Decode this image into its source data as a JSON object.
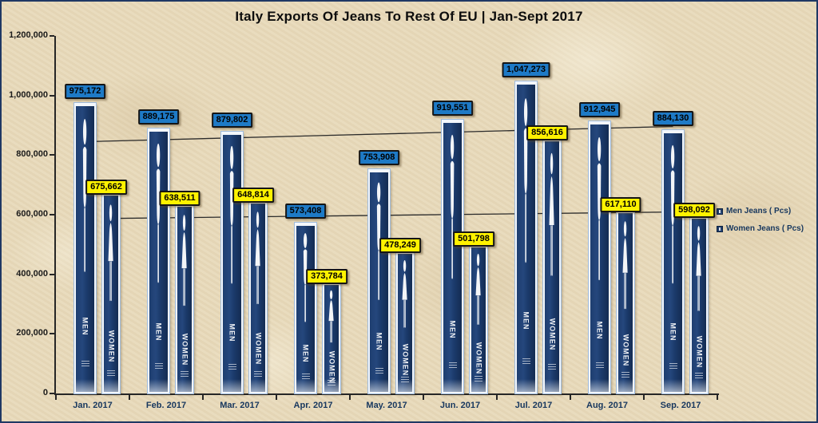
{
  "title": "Italy Exports Of Jeans To Rest Of EU | Jan-Sept 2017",
  "colors": {
    "background": "#E8DABB",
    "frame_border": "#1F3864",
    "bar_fill": "#1B3A6B",
    "bar_border": "#F3F7FC",
    "men_label_bg": "#1E7AC6",
    "women_label_bg": "#FFF200",
    "axis": "#262626",
    "trendline": "#2b2b2b",
    "x_label_color": "#17375E"
  },
  "y_axis": {
    "min": 0,
    "max": 1200000,
    "step": 200000,
    "tick_labels": [
      "0",
      "200,000",
      "400,000",
      "600,000",
      "800,000",
      "1,000,000",
      "1,200,000"
    ]
  },
  "legend": {
    "position": "right",
    "items": [
      {
        "label": "Men Jeans ( Pcs)",
        "swatch": "men-swatch"
      },
      {
        "label": "Women Jeans ( Pcs)",
        "swatch": "women-swatch"
      }
    ]
  },
  "chart_data": {
    "type": "bar",
    "title": "Italy Exports Of Jeans To Rest Of EU | Jan-Sept 2017",
    "categories": [
      "Jan. 2017",
      "Feb. 2017",
      "Mar. 2017",
      "Apr. 2017",
      "May. 2017",
      "Jun. 2017",
      "Jul. 2017",
      "Aug. 2017",
      "Sep. 2017"
    ],
    "series": [
      {
        "name": "Men Jeans ( Pcs)",
        "bar_text": "MEN",
        "values": [
          975172,
          889175,
          879802,
          573408,
          753908,
          919551,
          1047273,
          912945,
          884130
        ],
        "labels": [
          "975,172",
          "889,175",
          "879,802",
          "573,408",
          "753,908",
          "919,551",
          "1,047,273",
          "912,945",
          "884,130"
        ]
      },
      {
        "name": "Women Jeans ( Pcs)",
        "bar_text": "WOMEN",
        "values": [
          675662,
          638511,
          648814,
          373784,
          478249,
          501798,
          856616,
          617110,
          598092
        ],
        "labels": [
          "675,662",
          "638,511",
          "648,814",
          "373,784",
          "478,249",
          "501,798",
          "856,616",
          "617,110",
          "598,092"
        ]
      }
    ],
    "trendlines": [
      {
        "series": "Men Jeans ( Pcs)",
        "start_value": 844980,
        "end_value": 896212
      },
      {
        "series": "Women Jeans ( Pcs)",
        "start_value": 587461,
        "end_value": 610013
      }
    ],
    "xlabel": "",
    "ylabel": "",
    "ylim": [
      0,
      1200000
    ],
    "grid": false,
    "legend_position": "right"
  }
}
